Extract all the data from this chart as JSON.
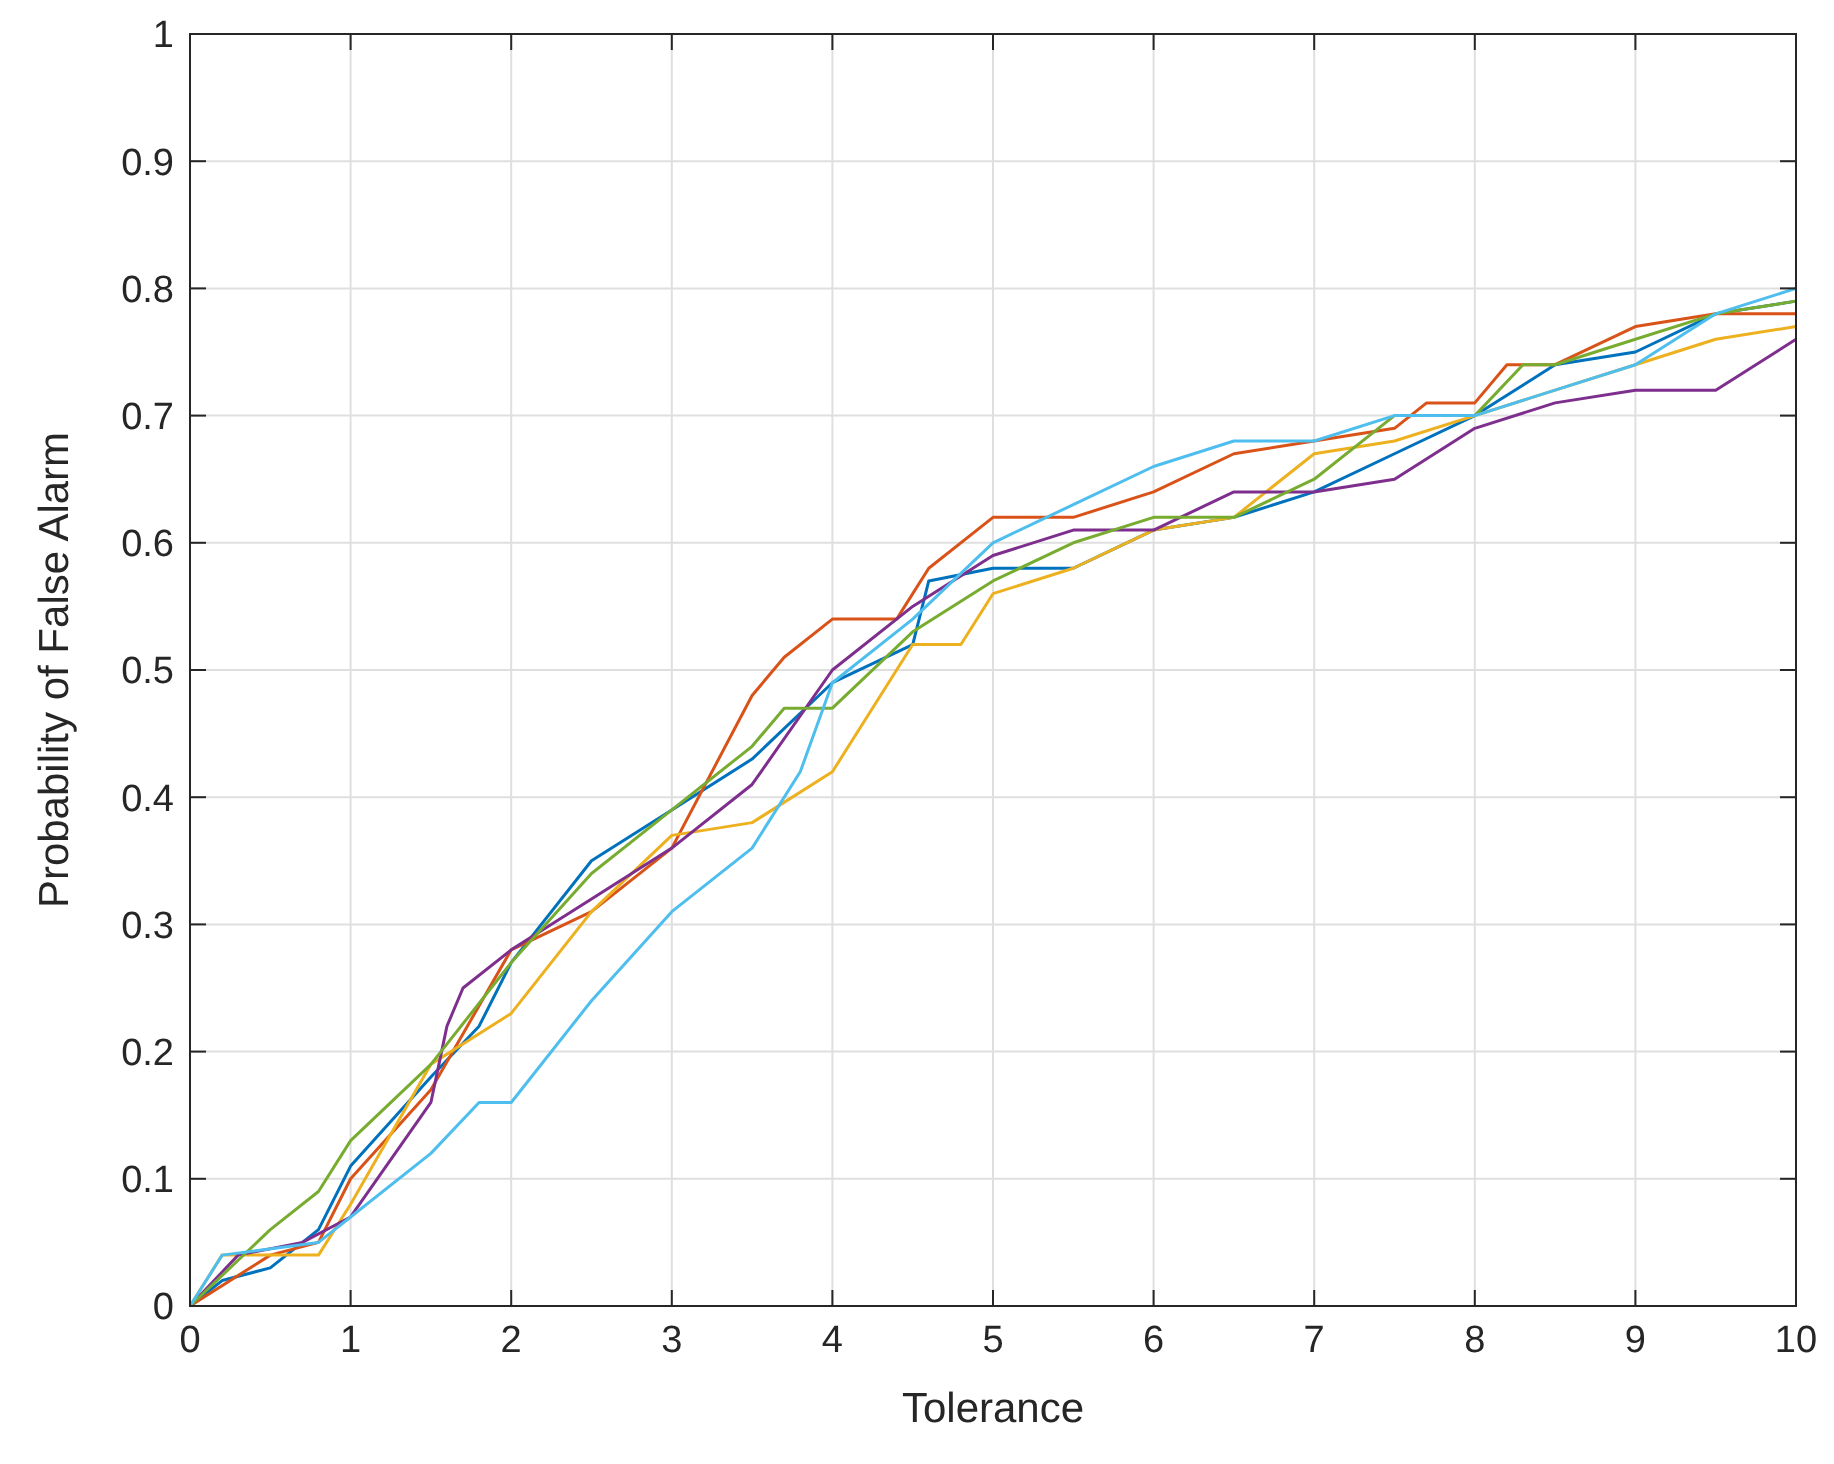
{
  "chart_data": {
    "type": "line",
    "xlabel": "Tolerance",
    "ylabel": "Probability of False Alarm",
    "xlim": [
      0,
      10
    ],
    "ylim": [
      0,
      1
    ],
    "xticks": [
      0,
      1,
      2,
      3,
      4,
      5,
      6,
      7,
      8,
      9,
      10
    ],
    "yticks": [
      0,
      0.1,
      0.2,
      0.3,
      0.4,
      0.5,
      0.6,
      0.7,
      0.8,
      0.9,
      1
    ],
    "grid": true,
    "marker": "none",
    "line_style": "solid",
    "series": [
      {
        "color": "#0072bd",
        "x": [
          0,
          0.2,
          0.5,
          0.8,
          1,
          1.5,
          1.8,
          2,
          2.5,
          3,
          3.5,
          4,
          4.5,
          4.6,
          5,
          5.5,
          6,
          6.5,
          7,
          7.5,
          8,
          8.5,
          9,
          9.5,
          10
        ],
        "values": [
          0,
          0.02,
          0.03,
          0.06,
          0.11,
          0.18,
          0.22,
          0.27,
          0.35,
          0.39,
          0.43,
          0.49,
          0.52,
          0.57,
          0.58,
          0.58,
          0.61,
          0.62,
          0.64,
          0.67,
          0.7,
          0.74,
          0.75,
          0.78,
          0.79
        ]
      },
      {
        "color": "#d95319",
        "x": [
          0,
          0.5,
          0.8,
          1,
          1.5,
          2,
          2.5,
          3,
          3.5,
          3.7,
          4,
          4.4,
          4.6,
          5,
          5.5,
          6,
          6.5,
          7,
          7.5,
          7.7,
          8,
          8.2,
          8.5,
          9,
          9.5,
          10
        ],
        "values": [
          0,
          0.04,
          0.05,
          0.1,
          0.17,
          0.28,
          0.31,
          0.36,
          0.48,
          0.51,
          0.54,
          0.54,
          0.58,
          0.62,
          0.62,
          0.64,
          0.67,
          0.68,
          0.69,
          0.71,
          0.71,
          0.74,
          0.74,
          0.77,
          0.78,
          0.78
        ]
      },
      {
        "color": "#edb120",
        "x": [
          0,
          0.2,
          0.8,
          1,
          1.5,
          2,
          2.5,
          3,
          3.5,
          4,
          4.5,
          4.8,
          5,
          5.5,
          6,
          6.5,
          7,
          7.5,
          8,
          8.5,
          9,
          9.5,
          10
        ],
        "values": [
          0,
          0.04,
          0.04,
          0.08,
          0.19,
          0.23,
          0.31,
          0.37,
          0.38,
          0.42,
          0.52,
          0.52,
          0.56,
          0.58,
          0.61,
          0.62,
          0.67,
          0.68,
          0.7,
          0.72,
          0.74,
          0.76,
          0.77
        ]
      },
      {
        "color": "#7e2f8e",
        "x": [
          0,
          0.3,
          0.7,
          1,
          1.5,
          1.6,
          1.7,
          2,
          2.5,
          3,
          3.5,
          4,
          4.5,
          5,
          5.5,
          6,
          6.5,
          7,
          7.5,
          8,
          8.5,
          9,
          9.5,
          10
        ],
        "values": [
          0,
          0.04,
          0.05,
          0.07,
          0.16,
          0.22,
          0.25,
          0.28,
          0.32,
          0.36,
          0.41,
          0.5,
          0.55,
          0.59,
          0.61,
          0.61,
          0.64,
          0.64,
          0.65,
          0.69,
          0.71,
          0.72,
          0.72,
          0.76
        ]
      },
      {
        "color": "#77ac30",
        "x": [
          0,
          0.5,
          0.8,
          1,
          1.5,
          2,
          2.5,
          3,
          3.5,
          3.7,
          4,
          4.5,
          5,
          5.5,
          6,
          6.5,
          7,
          7.5,
          8,
          8.3,
          8.5,
          9,
          9.5,
          10
        ],
        "values": [
          0,
          0.06,
          0.09,
          0.13,
          0.19,
          0.27,
          0.34,
          0.39,
          0.44,
          0.47,
          0.47,
          0.53,
          0.57,
          0.6,
          0.62,
          0.62,
          0.65,
          0.7,
          0.7,
          0.74,
          0.74,
          0.76,
          0.78,
          0.79
        ]
      },
      {
        "color": "#4dbeee",
        "x": [
          0,
          0.2,
          0.8,
          1,
          1.5,
          1.8,
          2,
          2.5,
          3,
          3.5,
          3.8,
          4,
          4.5,
          5,
          5.5,
          6,
          6.5,
          7,
          7.5,
          8,
          8.5,
          9,
          9.5,
          10
        ],
        "values": [
          0,
          0.04,
          0.05,
          0.07,
          0.12,
          0.16,
          0.16,
          0.24,
          0.31,
          0.36,
          0.42,
          0.49,
          0.54,
          0.6,
          0.63,
          0.66,
          0.68,
          0.68,
          0.7,
          0.7,
          0.72,
          0.74,
          0.78,
          0.8
        ]
      }
    ]
  }
}
